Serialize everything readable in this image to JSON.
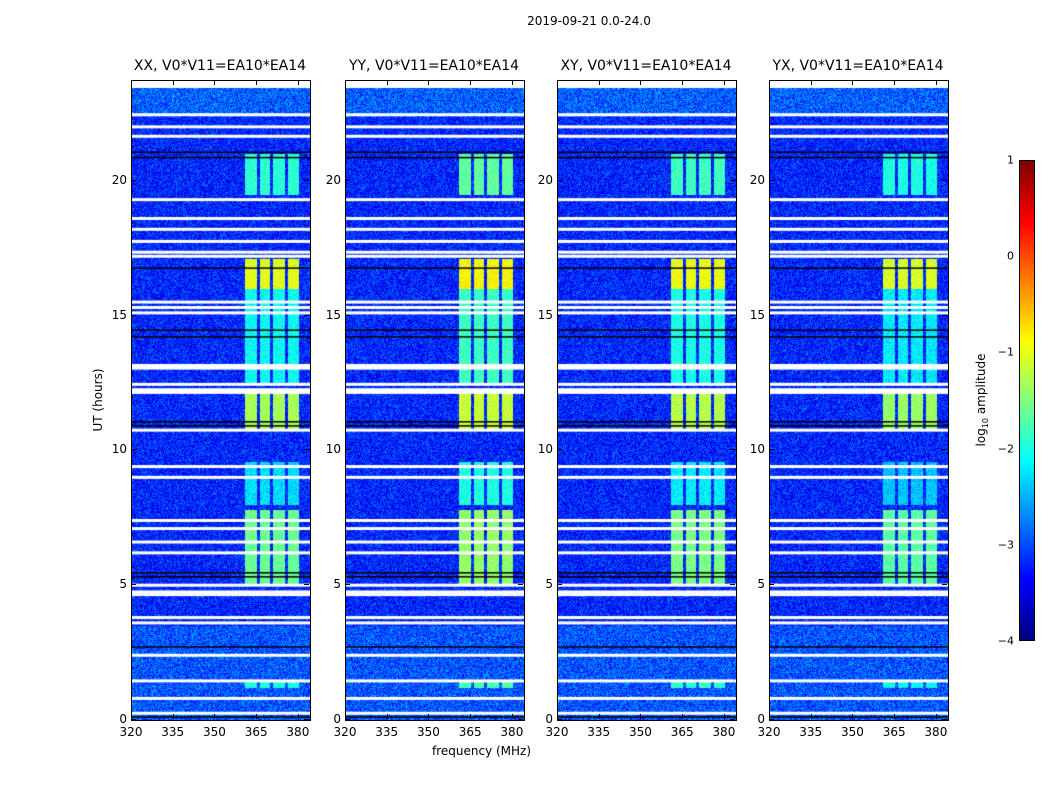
{
  "chart_data": {
    "type": "heatmap",
    "title": "2019-09-21 0.0-24.0",
    "xlabel": "frequency (MHz)",
    "ylabel": "UT (hours)",
    "xlim": [
      320,
      384
    ],
    "ylim": [
      0,
      23.7
    ],
    "xticks": [
      320,
      335,
      350,
      365,
      380
    ],
    "yticks": [
      0,
      5,
      10,
      15,
      20
    ],
    "panels": [
      {
        "title": "XX, V0*V11=EA10*EA14",
        "band_gain": 1.0
      },
      {
        "title": "YY, V0*V11=EA10*EA14",
        "band_gain": 1.15
      },
      {
        "title": "XY, V0*V11=EA10*EA14",
        "band_gain": 1.05
      },
      {
        "title": "YX, V0*V11=EA10*EA14",
        "band_gain": 0.95
      }
    ],
    "colorbar": {
      "label_prefix": "log",
      "label_sub": "10",
      "label_suffix": " amplitude",
      "colormap": "jet",
      "range": [
        -4,
        1
      ],
      "ticks": [
        "1",
        "0",
        "−1",
        "−2",
        "−3",
        "−4"
      ],
      "tick_values": [
        1,
        0,
        -1,
        -2,
        -3,
        -4
      ]
    },
    "background_level": -3.2,
    "rfi_subbands_mhz": [
      [
        360.4,
        364.8
      ],
      [
        365.9,
        369.5
      ],
      [
        370.6,
        374.9
      ],
      [
        375.9,
        379.9
      ]
    ],
    "rfi_time_ranges": [
      {
        "from": 1.2,
        "to": 1.5,
        "level": -2.0
      },
      {
        "from": 5.0,
        "to": 7.8,
        "level": -1.6
      },
      {
        "from": 8.0,
        "to": 9.6,
        "level": -2.3
      },
      {
        "from": 10.8,
        "to": 12.3,
        "level": -1.3
      },
      {
        "from": 12.5,
        "to": 16.0,
        "level": -2.1
      },
      {
        "from": 16.0,
        "to": 17.1,
        "level": -1.0
      },
      {
        "from": 19.5,
        "to": 21.0,
        "level": -1.9
      }
    ],
    "flagged_hours": [
      0.25,
      0.8,
      1.45,
      2.4,
      3.6,
      3.8,
      4.65,
      4.75,
      5.0,
      6.2,
      6.6,
      7.1,
      7.4,
      9.0,
      9.4,
      10.75,
      12.15,
      12.25,
      12.45,
      13.05,
      13.15,
      15.1,
      15.3,
      15.5,
      17.2,
      17.35,
      17.75,
      18.2,
      18.6,
      19.3,
      21.65,
      22.0,
      22.45
    ],
    "dropout_hours": [
      0.1,
      2.7,
      5.3,
      5.45,
      10.9,
      11.05,
      14.2,
      14.45,
      16.75,
      21.05,
      20.85
    ]
  }
}
